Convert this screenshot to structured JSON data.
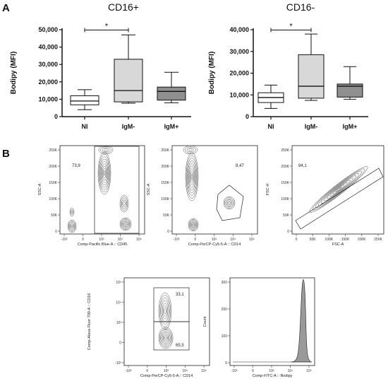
{
  "panel_a_label": "A",
  "panel_b_label": "B",
  "chart_data": [
    {
      "type": "box",
      "title": "CD16+",
      "ylabel": "Bodipy (MFI)",
      "ylim": [
        0,
        50000
      ],
      "yticks": [
        "0",
        "10,000",
        "20,000",
        "30,000",
        "40,000",
        "50,000"
      ],
      "categories": [
        "NI",
        "IgM-",
        "IgM+"
      ],
      "colors": [
        "#ffffff",
        "#d8d8d8",
        "#8f8f8f"
      ],
      "boxes": [
        {
          "min": 4000,
          "q1": 6800,
          "median": 9000,
          "q3": 12000,
          "max": 15500
        },
        {
          "min": 7700,
          "q1": 8500,
          "median": 15000,
          "q3": 33000,
          "max": 47000
        },
        {
          "min": 8000,
          "q1": 9500,
          "median": 14500,
          "q3": 17000,
          "max": 25500
        }
      ],
      "significance": {
        "between": [
          0,
          1
        ],
        "label": "*"
      }
    },
    {
      "type": "box",
      "title": "CD16-",
      "ylabel": "Bodipy (MFI)",
      "ylim": [
        0,
        40000
      ],
      "yticks": [
        "0",
        "10,000",
        "20,000",
        "30,000",
        "40,000"
      ],
      "categories": [
        "NI",
        "IgM-",
        "IgM+"
      ],
      "colors": [
        "#ffffff",
        "#d8d8d8",
        "#8f8f8f"
      ],
      "boxes": [
        {
          "min": 3800,
          "q1": 6500,
          "median": 8800,
          "q3": 11000,
          "max": 14500
        },
        {
          "min": 7500,
          "q1": 8500,
          "median": 14000,
          "q3": 28500,
          "max": 38000
        },
        {
          "min": 8000,
          "q1": 9000,
          "median": 14000,
          "q3": 15000,
          "max": 23000
        }
      ],
      "significance": {
        "between": [
          0,
          1
        ],
        "label": "*"
      }
    }
  ],
  "flow": {
    "p1": {
      "xlabel": "Comp-Pacific Blue-A :: CD45",
      "ylabel": "SSC-A",
      "gate_pct": "73,9",
      "yticks": [
        "0",
        "50K",
        "100K",
        "150K",
        "200K",
        "250K"
      ],
      "xticks": [
        "-10³",
        "0",
        "10³",
        "10⁴",
        "10⁵"
      ]
    },
    "p2": {
      "xlabel": "Comp-PerCP-Cy5-5-A :: CD14",
      "ylabel": "SSC-A",
      "gate_pct": "8,47",
      "yticks": [
        "0",
        "50K",
        "100K",
        "150K",
        "200K",
        "250K"
      ],
      "xticks": [
        "-10³",
        "0",
        "10³",
        "10⁴",
        "10⁵"
      ]
    },
    "p3": {
      "xlabel": "FSC-A",
      "ylabel": "FSC-H",
      "gate_pct": "94,1",
      "yticks": [
        "0",
        "50K",
        "100K",
        "150K",
        "200K",
        "250K"
      ],
      "xticks": [
        "0",
        "50K",
        "100K",
        "150K",
        "200K",
        "250K"
      ]
    },
    "p4": {
      "xlabel": "Comp-PerCP-Cy5-5-A :: CD14",
      "ylabel": "Comp-Alexa Fluor 700-A :: CD16",
      "gate_top_pct": "33,1",
      "gate_bottom_pct": "65,5",
      "yticks": [
        "-10³",
        "0",
        "10³",
        "10⁴",
        "10⁵"
      ],
      "xticks": [
        "-10³",
        "0",
        "10³",
        "10⁴",
        "10⁵"
      ]
    },
    "p5": {
      "xlabel": "Comp-FITC-A :: Bodipy",
      "ylabel": "Count",
      "yticks": [
        "0",
        "100",
        "200",
        "300"
      ],
      "xticks": [
        "-10³",
        "0",
        "10³",
        "10⁴",
        "10⁵"
      ]
    }
  }
}
